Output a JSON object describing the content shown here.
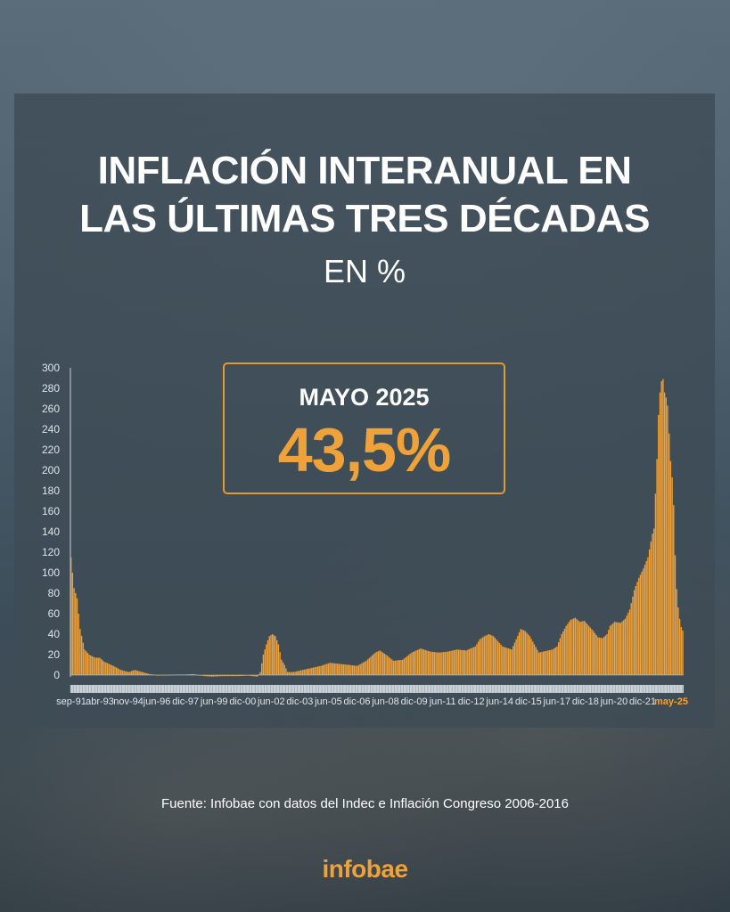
{
  "title_line1": "INFLACIÓN INTERANUAL EN",
  "title_line2": "LAS ÚLTIMAS TRES DÉCADAS",
  "subtitle": "EN %",
  "highlight": {
    "label": "MAYO 2025",
    "value": "43,5%"
  },
  "source": "Fuente: Infobae con datos del Indec e Inflación Congreso 2006-2016",
  "logo": "infobae",
  "colors": {
    "bar": "#f0a23a",
    "accent": "#e69a2e",
    "text": "#ffffff",
    "axis_text": "#dfe5ea",
    "last_tick": "#f0a23a"
  },
  "chart_data": {
    "type": "bar",
    "title": "INFLACIÓN INTERANUAL EN LAS ÚLTIMAS TRES DÉCADAS",
    "subtitle": "EN %",
    "ylim": [
      0,
      300
    ],
    "yticks": [
      0,
      20,
      40,
      60,
      80,
      100,
      120,
      140,
      160,
      180,
      200,
      220,
      240,
      260,
      280,
      300
    ],
    "xticks": [
      "sep-91",
      "abr-93",
      "nov-94",
      "jun-96",
      "dic-97",
      "jun-99",
      "dic-00",
      "jun-02",
      "dic-03",
      "jun-05",
      "dic-06",
      "jun-08",
      "dic-09",
      "jun-11",
      "dic-12",
      "jun-14",
      "dic-15",
      "jun-17",
      "dic-18",
      "jun-20",
      "dic-21",
      "may-25"
    ],
    "grid": false,
    "legend": "none",
    "anchors": [
      [
        "1991-09",
        115
      ],
      [
        "1991-11",
        85
      ],
      [
        "1992-01",
        75
      ],
      [
        "1992-03",
        45
      ],
      [
        "1992-06",
        25
      ],
      [
        "1992-09",
        20
      ],
      [
        "1993-01",
        17
      ],
      [
        "1993-04",
        17
      ],
      [
        "1993-07",
        13
      ],
      [
        "1994-01",
        9
      ],
      [
        "1994-06",
        5
      ],
      [
        "1994-11",
        3
      ],
      [
        "1995-03",
        5
      ],
      [
        "1995-08",
        3
      ],
      [
        "1996-01",
        1
      ],
      [
        "1996-06",
        0
      ],
      [
        "1997-06",
        0.5
      ],
      [
        "1997-12",
        0.5
      ],
      [
        "1998-06",
        1
      ],
      [
        "1999-01",
        -1
      ],
      [
        "1999-06",
        -1.5
      ],
      [
        "2000-01",
        -1
      ],
      [
        "2000-12",
        -1
      ],
      [
        "2001-06",
        -0.5
      ],
      [
        "2001-12",
        -1.5
      ],
      [
        "2002-02",
        3
      ],
      [
        "2002-04",
        20
      ],
      [
        "2002-06",
        30
      ],
      [
        "2002-08",
        38
      ],
      [
        "2002-10",
        40
      ],
      [
        "2002-12",
        38
      ],
      [
        "2003-02",
        30
      ],
      [
        "2003-04",
        15
      ],
      [
        "2003-06",
        10
      ],
      [
        "2003-08",
        3
      ],
      [
        "2003-12",
        3
      ],
      [
        "2004-06",
        5
      ],
      [
        "2004-12",
        7
      ],
      [
        "2005-06",
        9
      ],
      [
        "2005-12",
        12
      ],
      [
        "2006-06",
        11
      ],
      [
        "2006-12",
        10
      ],
      [
        "2007-06",
        9
      ],
      [
        "2007-12",
        14
      ],
      [
        "2008-06",
        22
      ],
      [
        "2008-09",
        24
      ],
      [
        "2009-01",
        20
      ],
      [
        "2009-06",
        14
      ],
      [
        "2009-12",
        15
      ],
      [
        "2010-06",
        22
      ],
      [
        "2010-12",
        26
      ],
      [
        "2011-06",
        23
      ],
      [
        "2011-12",
        22
      ],
      [
        "2012-06",
        23
      ],
      [
        "2012-12",
        25
      ],
      [
        "2013-06",
        24
      ],
      [
        "2013-12",
        28
      ],
      [
        "2014-03",
        35
      ],
      [
        "2014-06",
        38
      ],
      [
        "2014-09",
        40
      ],
      [
        "2014-12",
        38
      ],
      [
        "2015-06",
        28
      ],
      [
        "2015-12",
        25
      ],
      [
        "2016-03",
        35
      ],
      [
        "2016-06",
        45
      ],
      [
        "2016-09",
        43
      ],
      [
        "2016-12",
        38
      ],
      [
        "2017-03",
        30
      ],
      [
        "2017-06",
        22
      ],
      [
        "2017-09",
        23
      ],
      [
        "2017-12",
        24
      ],
      [
        "2018-03",
        25
      ],
      [
        "2018-06",
        28
      ],
      [
        "2018-09",
        40
      ],
      [
        "2018-12",
        48
      ],
      [
        "2019-03",
        54
      ],
      [
        "2019-06",
        56
      ],
      [
        "2019-09",
        52
      ],
      [
        "2019-12",
        53
      ],
      [
        "2020-03",
        48
      ],
      [
        "2020-06",
        43
      ],
      [
        "2020-09",
        37
      ],
      [
        "2020-12",
        36
      ],
      [
        "2021-03",
        40
      ],
      [
        "2021-05",
        48
      ],
      [
        "2021-08",
        52
      ],
      [
        "2021-12",
        51
      ],
      [
        "2022-03",
        55
      ],
      [
        "2022-06",
        64
      ],
      [
        "2022-09",
        83
      ],
      [
        "2022-12",
        95
      ],
      [
        "2023-03",
        104
      ],
      [
        "2023-06",
        115
      ],
      [
        "2023-09",
        138
      ],
      [
        "2023-10",
        143
      ],
      [
        "2023-12",
        211
      ],
      [
        "2024-01",
        254
      ],
      [
        "2024-02",
        276
      ],
      [
        "2024-03",
        287
      ],
      [
        "2024-04",
        289
      ],
      [
        "2024-05",
        276
      ],
      [
        "2024-06",
        271
      ],
      [
        "2024-07",
        263
      ],
      [
        "2024-08",
        236
      ],
      [
        "2024-09",
        209
      ],
      [
        "2024-10",
        193
      ],
      [
        "2024-11",
        166
      ],
      [
        "2024-12",
        117
      ],
      [
        "2025-01",
        84
      ],
      [
        "2025-02",
        66
      ],
      [
        "2025-03",
        55
      ],
      [
        "2025-04",
        47
      ],
      [
        "2025-05",
        43.5
      ]
    ]
  }
}
